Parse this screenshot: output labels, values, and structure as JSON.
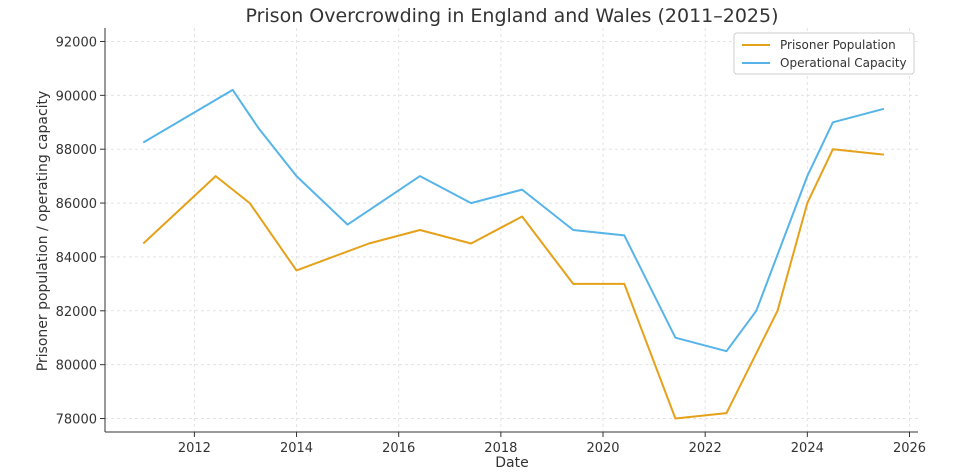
{
  "chart_data": {
    "type": "line",
    "title": "Prison Overcrowding in England and Wales (2011–2025)",
    "xlabel": "Date",
    "ylabel": "Prisoner population / operating capacity",
    "xlim": [
      "2010-04-01",
      "2026-03-01"
    ],
    "ylim": [
      77500,
      92500
    ],
    "x_ticks": [
      "2012",
      "2014",
      "2016",
      "2018",
      "2020",
      "2022",
      "2024",
      "2026"
    ],
    "y_ticks": [
      "78000",
      "80000",
      "82000",
      "84000",
      "86000",
      "88000",
      "90000",
      "92000"
    ],
    "grid": true,
    "legend_position": "top-right",
    "series": [
      {
        "name": "Prisoner Population",
        "color": "#E6A11A",
        "points": [
          [
            "2011-01-01",
            84500
          ],
          [
            "2012-06-01",
            87000
          ],
          [
            "2013-02-01",
            86000
          ],
          [
            "2014-01-01",
            83500
          ],
          [
            "2015-06-01",
            84500
          ],
          [
            "2016-06-01",
            85000
          ],
          [
            "2017-06-01",
            84500
          ],
          [
            "2018-06-01",
            85500
          ],
          [
            "2019-06-01",
            83000
          ],
          [
            "2020-06-01",
            83000
          ],
          [
            "2021-06-01",
            78000
          ],
          [
            "2022-06-01",
            78200
          ],
          [
            "2023-06-01",
            82000
          ],
          [
            "2024-01-01",
            86000
          ],
          [
            "2024-07-01",
            88000
          ],
          [
            "2025-07-01",
            87800
          ]
        ]
      },
      {
        "name": "Operational Capacity",
        "color": "#56B4E9",
        "points": [
          [
            "2011-01-01",
            88250
          ],
          [
            "2012-10-01",
            90200
          ],
          [
            "2013-04-01",
            88800
          ],
          [
            "2014-01-01",
            87000
          ],
          [
            "2015-01-01",
            85200
          ],
          [
            "2016-06-01",
            87000
          ],
          [
            "2017-06-01",
            86000
          ],
          [
            "2018-06-01",
            86500
          ],
          [
            "2019-06-01",
            85000
          ],
          [
            "2020-06-01",
            84800
          ],
          [
            "2021-06-01",
            81000
          ],
          [
            "2022-06-01",
            80500
          ],
          [
            "2023-01-01",
            82000
          ],
          [
            "2024-01-01",
            87000
          ],
          [
            "2024-07-01",
            89000
          ],
          [
            "2025-07-01",
            89500
          ]
        ]
      }
    ]
  }
}
